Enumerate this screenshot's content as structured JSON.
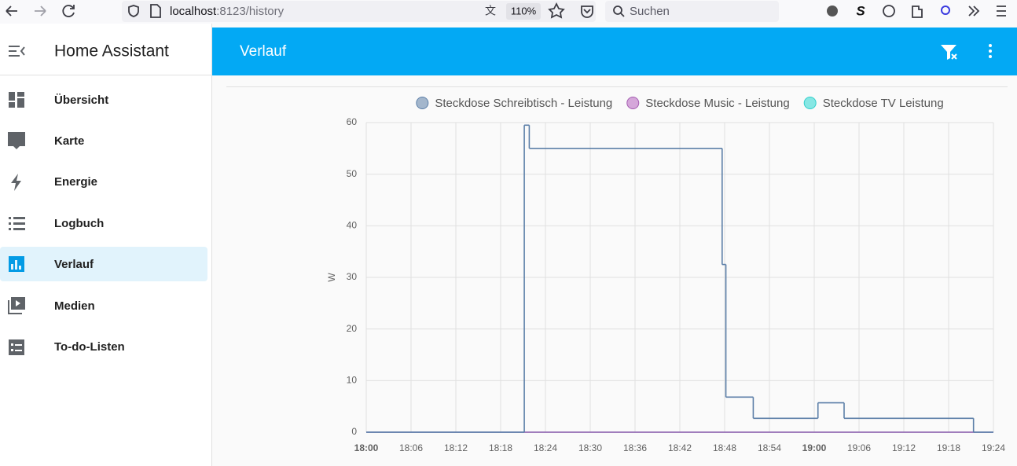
{
  "browser": {
    "url_host": "localhost",
    "url_path": ":8123/history",
    "zoom": "110%",
    "search_placeholder": "Suchen"
  },
  "sidebar": {
    "title": "Home Assistant",
    "items": [
      "Übersicht",
      "Karte",
      "Energie",
      "Logbuch",
      "Verlauf",
      "Medien",
      "To-do-Listen"
    ],
    "selected": 4
  },
  "header": {
    "title": "Verlauf"
  },
  "chart_data": {
    "type": "line",
    "step": true,
    "y_label": "W",
    "grid": true,
    "legend": "top",
    "xlim": [
      "18:00",
      "19:24"
    ],
    "xticks": [
      "18:00",
      "18:06",
      "18:12",
      "18:18",
      "18:24",
      "18:30",
      "18:36",
      "18:42",
      "18:48",
      "18:54",
      "19:00",
      "19:06",
      "19:12",
      "19:18",
      "19:24"
    ],
    "ylim": [
      0,
      60
    ],
    "yticks": [
      0,
      10,
      20,
      30,
      40,
      50,
      60
    ],
    "series": [
      {
        "name": "Steckdose Schreibtisch - Leistung",
        "color": "#5c7fa8",
        "legend_color": "#a3b6cc",
        "x": [
          "18:00:00",
          "18:21:10",
          "18:21:50",
          "18:47:40",
          "18:48:10",
          "18:51:50",
          "19:00:30",
          "19:04:00",
          "19:21:20",
          "19:24:00"
        ],
        "values": [
          0,
          59.5,
          55,
          32.5,
          6.8,
          2.7,
          5.7,
          2.7,
          0,
          0
        ]
      },
      {
        "name": "Steckdose Music - Leistung",
        "color": "#a35bb0",
        "legend_color": "#d5a7da",
        "x": [
          "18:00:00",
          "19:24:00"
        ],
        "values": [
          0,
          0
        ]
      },
      {
        "name": "Steckdose TV Leistung",
        "color": "#2fcfcb",
        "legend_color": "#86e7e4",
        "x": [
          "18:00:00",
          "19:24:00"
        ],
        "values": [
          0,
          0
        ]
      }
    ]
  }
}
